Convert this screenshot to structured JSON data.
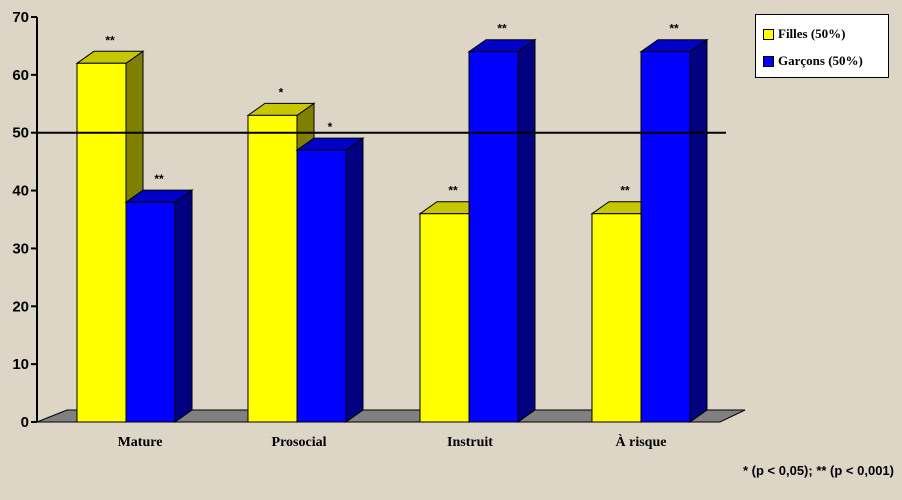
{
  "chart_data": {
    "type": "bar",
    "categories": [
      "Mature",
      "Prosocial",
      "Instruit",
      "À risque"
    ],
    "series": [
      {
        "name": "Filles (50%)",
        "color": "#ffff00",
        "values": [
          62,
          53,
          36,
          36
        ],
        "significance": [
          "**",
          "*",
          "**",
          "**"
        ]
      },
      {
        "name": "Garçons (50%)",
        "color": "#0000ff",
        "values": [
          38,
          47,
          64,
          64
        ],
        "significance": [
          "**",
          "*",
          "**",
          "**"
        ]
      }
    ],
    "ylim": [
      0,
      70
    ],
    "yticks": [
      "0",
      "10",
      "20",
      "30",
      "40",
      "50",
      "60",
      "70"
    ],
    "reference_line": 50,
    "legend_position": "top-right",
    "grid": false,
    "footnote": "* (p < 0,05); ** (p < 0,001)"
  }
}
